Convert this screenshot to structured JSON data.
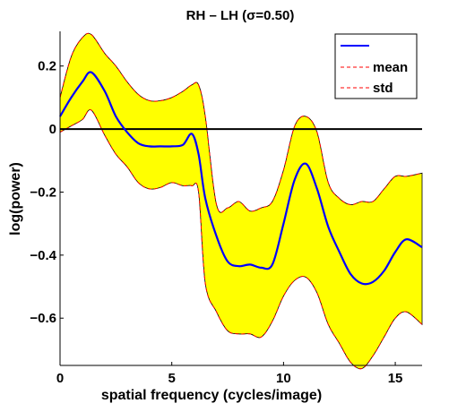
{
  "chart_data": {
    "type": "area",
    "title": "RH – LH (σ=0.50)",
    "xlabel": "spatial frequency (cycles/image)",
    "ylabel": "log(power)",
    "xlim": [
      0,
      16.2
    ],
    "ylim": [
      -0.75,
      0.31
    ],
    "xticks": [
      0,
      5,
      10,
      15
    ],
    "yticks": [
      0.2,
      0,
      -0.2,
      -0.4,
      -0.6
    ],
    "ytick_labels": [
      "0.2",
      "0",
      "−0.2",
      "−0.4",
      "−0.6"
    ],
    "grid": false,
    "legend_position": "top-right",
    "legend": [
      "",
      "mean",
      "std"
    ],
    "colors": {
      "mean_line": "#0000ff",
      "std_line": "#ff0000",
      "band_fill": "#ffff00",
      "zero_line": "#000000"
    },
    "zero_line": 0,
    "x": [
      0,
      0.5,
      1,
      1.4,
      2,
      2.5,
      3,
      3.5,
      4,
      4.5,
      5,
      5.5,
      5.9,
      6.2,
      6.5,
      7,
      7.5,
      8,
      8.5,
      9,
      9.5,
      10,
      10.5,
      11,
      11.5,
      12,
      12.5,
      13,
      13.5,
      14,
      14.5,
      15,
      15.5,
      16.2
    ],
    "series": [
      {
        "name": "mean",
        "values": [
          0.04,
          0.1,
          0.15,
          0.18,
          0.12,
          0.04,
          -0.01,
          -0.045,
          -0.055,
          -0.055,
          -0.055,
          -0.05,
          -0.015,
          -0.08,
          -0.22,
          -0.34,
          -0.42,
          -0.435,
          -0.43,
          -0.44,
          -0.43,
          -0.3,
          -0.16,
          -0.11,
          -0.19,
          -0.31,
          -0.39,
          -0.46,
          -0.49,
          -0.485,
          -0.45,
          -0.39,
          -0.35,
          -0.375
        ]
      },
      {
        "name": "std_upper",
        "values": [
          0.1,
          0.23,
          0.29,
          0.3,
          0.24,
          0.2,
          0.15,
          0.11,
          0.09,
          0.09,
          0.1,
          0.12,
          0.14,
          0.14,
          0.04,
          -0.24,
          -0.25,
          -0.23,
          -0.26,
          -0.25,
          -0.23,
          -0.13,
          0.01,
          0.04,
          -0.01,
          -0.17,
          -0.22,
          -0.24,
          -0.23,
          -0.23,
          -0.19,
          -0.15,
          -0.15,
          -0.14
        ]
      },
      {
        "name": "std_lower",
        "values": [
          -0.01,
          0.01,
          0.03,
          0.06,
          -0.02,
          -0.08,
          -0.12,
          -0.17,
          -0.19,
          -0.185,
          -0.17,
          -0.18,
          -0.18,
          -0.2,
          -0.49,
          -0.58,
          -0.64,
          -0.65,
          -0.65,
          -0.66,
          -0.61,
          -0.53,
          -0.48,
          -0.47,
          -0.52,
          -0.62,
          -0.68,
          -0.74,
          -0.76,
          -0.72,
          -0.66,
          -0.6,
          -0.58,
          -0.62
        ]
      }
    ]
  }
}
